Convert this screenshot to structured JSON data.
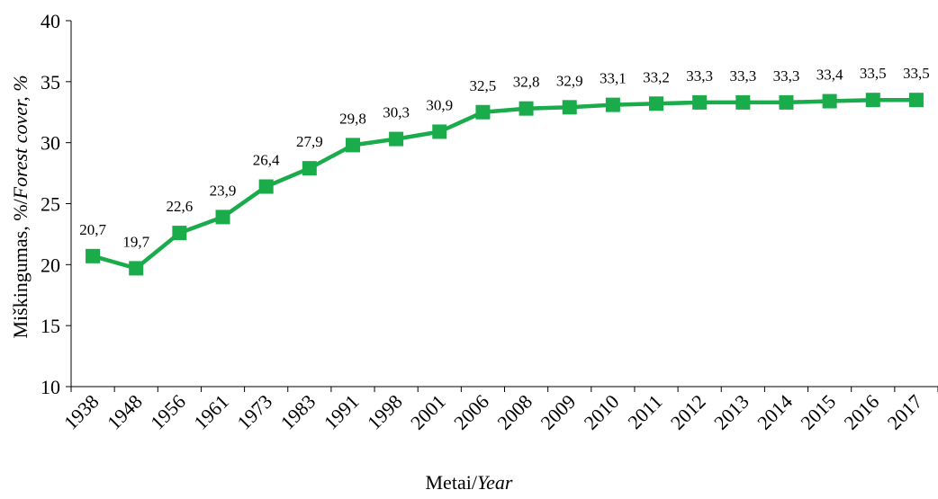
{
  "chart_data": {
    "type": "line",
    "categories": [
      "1938",
      "1948",
      "1956",
      "1961",
      "1973",
      "1983",
      "1991",
      "1998",
      "2001",
      "2006",
      "2008",
      "2009",
      "2010",
      "2011",
      "2012",
      "2013",
      "2014",
      "2015",
      "2016",
      "2017"
    ],
    "series": [
      {
        "values": [
          20.7,
          19.7,
          22.6,
          23.9,
          26.4,
          27.9,
          29.8,
          30.3,
          30.9,
          32.5,
          32.8,
          32.9,
          33.1,
          33.2,
          33.3,
          33.3,
          33.3,
          33.4,
          33.5,
          33.5
        ],
        "data_labels": [
          "20,7",
          "19,7",
          "22,6",
          "23,9",
          "26,4",
          "27,9",
          "29,8",
          "30,3",
          "30,9",
          "32,5",
          "32,8",
          "32,9",
          "33,1",
          "33,2",
          "33,3",
          "33,3",
          "33,3",
          "33,4",
          "33,5",
          "33,5"
        ],
        "color": "#1aab4b",
        "marker": "square"
      }
    ],
    "ylim": [
      10,
      40
    ],
    "yticks": [
      10,
      15,
      20,
      25,
      30,
      35,
      40
    ],
    "ylabel": {
      "plain": "Miškingumas, %/",
      "italic": "Forest cover, %"
    },
    "xlabel": {
      "plain": "Metai/",
      "italic": "Year"
    },
    "grid": false,
    "legend": "none"
  }
}
